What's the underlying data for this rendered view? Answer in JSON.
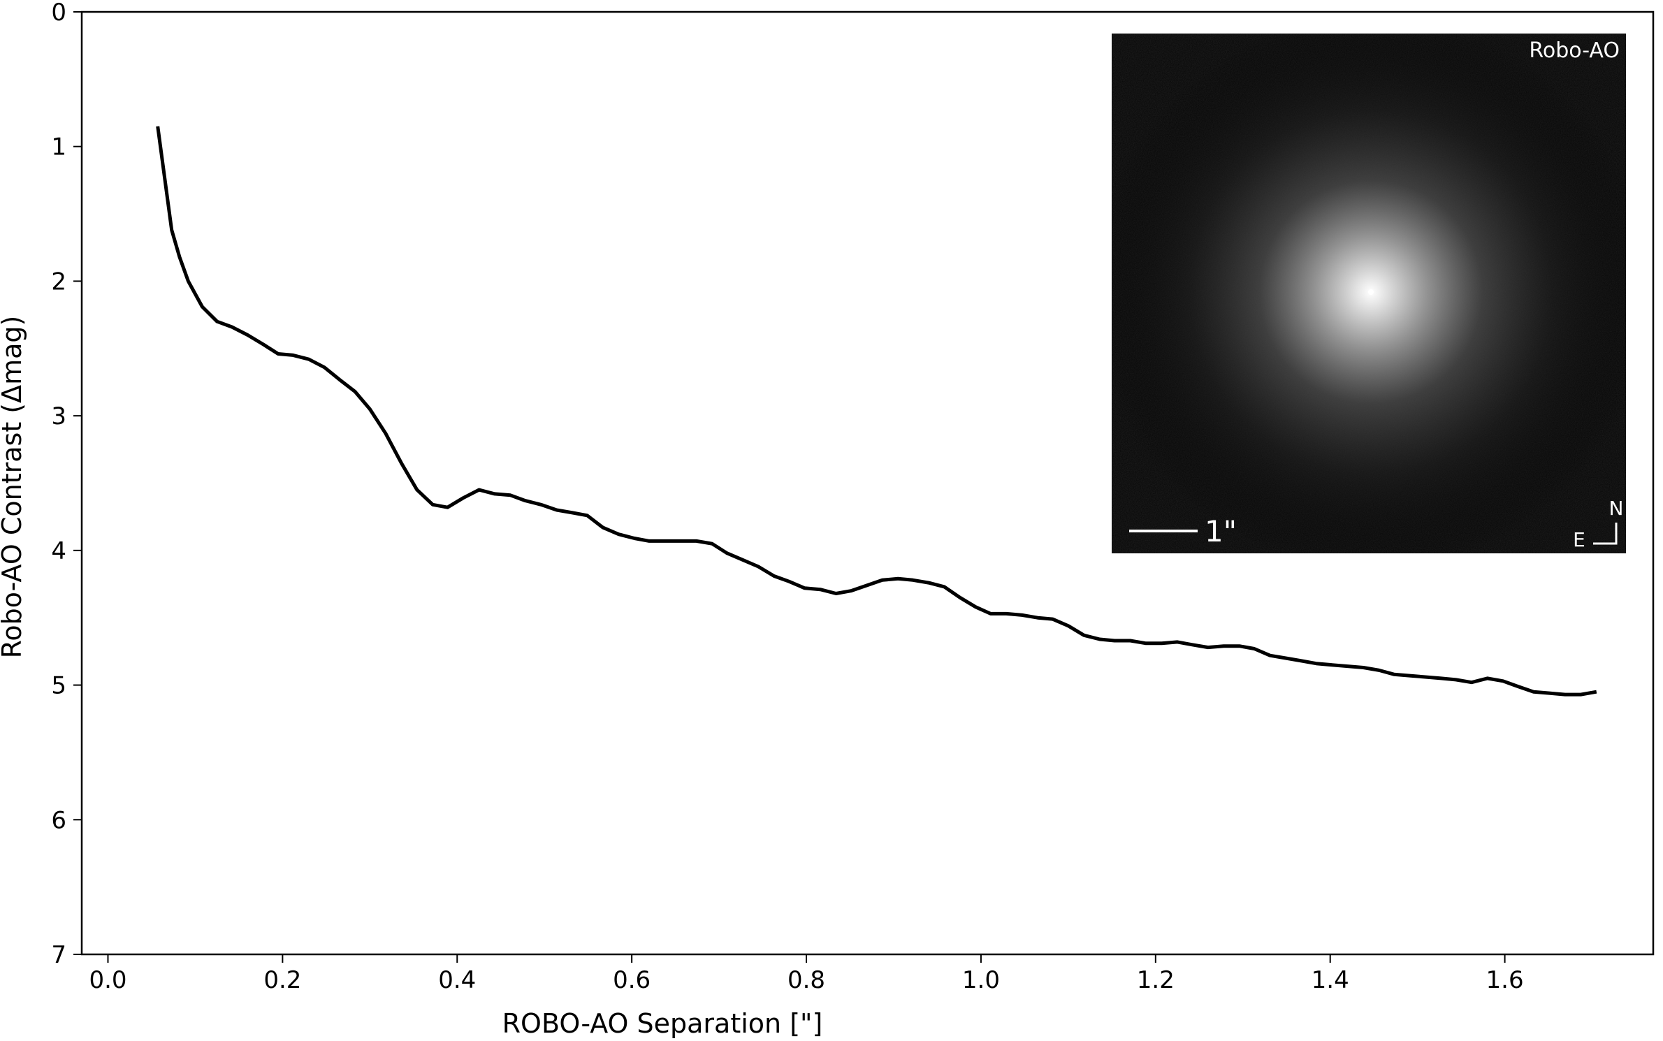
{
  "chart_data": {
    "type": "line",
    "xlabel": "ROBO-AO Separation [\"]",
    "ylabel": "Robo-AO Contrast (Δmag)",
    "xlim": [
      -0.03,
      1.77
    ],
    "ylim": [
      7,
      0
    ],
    "y_inverted": true,
    "grid": false,
    "xticks": [
      "0.0",
      "0.2",
      "0.4",
      "0.6",
      "0.8",
      "1.0",
      "1.2",
      "1.4",
      "1.6"
    ],
    "yticks": [
      "0",
      "1",
      "2",
      "3",
      "4",
      "5",
      "6",
      "7"
    ],
    "series": [
      {
        "color": "#000000",
        "x": [
          0.057,
          0.073,
          0.082,
          0.092,
          0.108,
          0.125,
          0.142,
          0.16,
          0.178,
          0.195,
          0.212,
          0.23,
          0.248,
          0.265,
          0.283,
          0.3,
          0.318,
          0.336,
          0.354,
          0.372,
          0.389,
          0.407,
          0.425,
          0.443,
          0.461,
          0.478,
          0.496,
          0.514,
          0.532,
          0.549,
          0.567,
          0.585,
          0.603,
          0.62,
          0.638,
          0.656,
          0.674,
          0.692,
          0.709,
          0.727,
          0.745,
          0.763,
          0.78,
          0.798,
          0.816,
          0.834,
          0.851,
          0.869,
          0.887,
          0.905,
          0.922,
          0.94,
          0.958,
          0.976,
          0.994,
          1.011,
          1.029,
          1.047,
          1.065,
          1.082,
          1.1,
          1.118,
          1.136,
          1.153,
          1.171,
          1.189,
          1.207,
          1.225,
          1.242,
          1.26,
          1.278,
          1.296,
          1.313,
          1.331,
          1.349,
          1.367,
          1.384,
          1.402,
          1.42,
          1.438,
          1.456,
          1.473,
          1.491,
          1.509,
          1.527,
          1.544,
          1.562,
          1.58,
          1.598,
          1.615,
          1.633,
          1.651,
          1.669,
          1.687,
          1.705
        ],
        "y": [
          0.85,
          1.62,
          1.82,
          2.0,
          2.19,
          2.3,
          2.34,
          2.4,
          2.47,
          2.54,
          2.55,
          2.58,
          2.64,
          2.73,
          2.82,
          2.95,
          3.13,
          3.35,
          3.55,
          3.66,
          3.68,
          3.61,
          3.55,
          3.58,
          3.59,
          3.63,
          3.66,
          3.7,
          3.72,
          3.74,
          3.83,
          3.88,
          3.91,
          3.93,
          3.93,
          3.93,
          3.93,
          3.95,
          4.02,
          4.07,
          4.12,
          4.19,
          4.23,
          4.28,
          4.29,
          4.32,
          4.3,
          4.26,
          4.22,
          4.21,
          4.22,
          4.24,
          4.27,
          4.35,
          4.42,
          4.47,
          4.47,
          4.48,
          4.5,
          4.51,
          4.56,
          4.63,
          4.66,
          4.67,
          4.67,
          4.69,
          4.69,
          4.68,
          4.7,
          4.72,
          4.71,
          4.71,
          4.73,
          4.78,
          4.8,
          4.82,
          4.84,
          4.85,
          4.86,
          4.87,
          4.89,
          4.92,
          4.93,
          4.94,
          4.95,
          4.96,
          4.98,
          4.95,
          4.97,
          5.01,
          5.05,
          5.06,
          5.07,
          5.07,
          5.05
        ]
      }
    ]
  },
  "inset": {
    "label": "Robo-AO",
    "scale_bar_label": "1\"",
    "north_label": "N",
    "east_label": "E"
  }
}
